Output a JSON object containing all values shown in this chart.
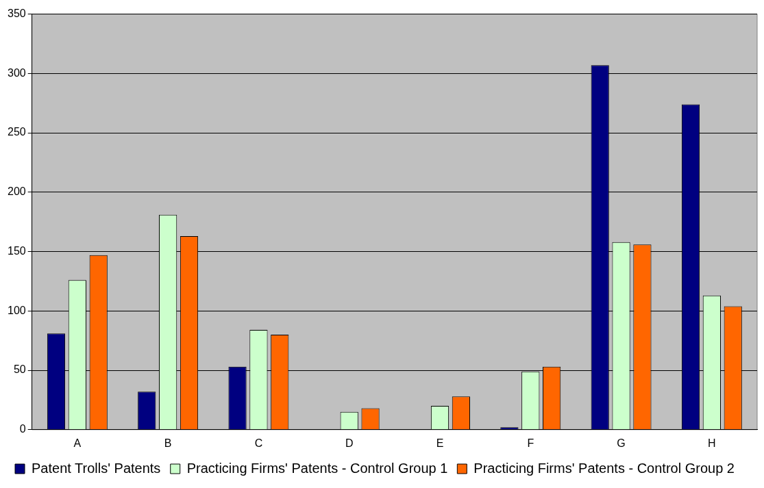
{
  "chart_data": {
    "type": "bar",
    "categories": [
      "A",
      "B",
      "C",
      "D",
      "E",
      "F",
      "G",
      "H"
    ],
    "series": [
      {
        "name": "Patent Trolls' Patents",
        "color": "#000080",
        "values": [
          81,
          32,
          53,
          0,
          0,
          2,
          307,
          274
        ]
      },
      {
        "name": "Practicing Firms' Patents - Control Group 1",
        "color": "#ccffcc",
        "values": [
          126,
          181,
          84,
          15,
          20,
          49,
          158,
          113
        ]
      },
      {
        "name": "Practicing Firms' Patents - Control Group 2",
        "color": "#ff6600",
        "values": [
          147,
          163,
          80,
          18,
          28,
          53,
          156,
          104
        ]
      }
    ],
    "ylim": [
      0,
      350
    ],
    "yticks": [
      0,
      50,
      100,
      150,
      200,
      250,
      300,
      350
    ],
    "grid": "y",
    "legend": "bottom"
  }
}
